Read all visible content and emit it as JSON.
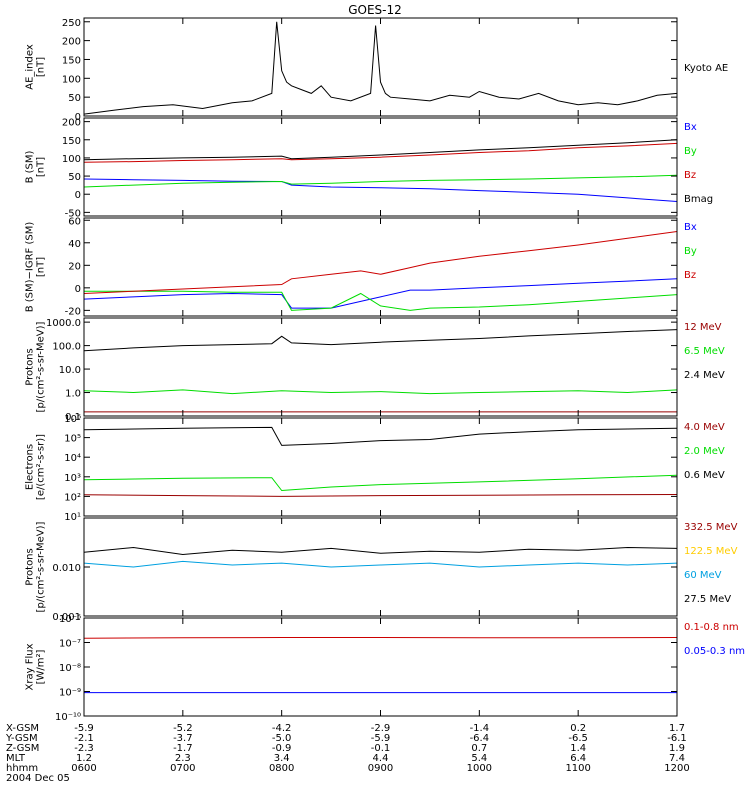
{
  "title": "GOES-12",
  "colors": {
    "black": "#000000",
    "red": "#cc0000",
    "green": "#00dd00",
    "blue": "#0000ff",
    "darkred": "#990000",
    "yellow": "#ffcc00",
    "cyan": "#00a0e0"
  },
  "chart_data": [
    {
      "id": "ae",
      "type": "line",
      "ylabel": [
        "AE_index",
        "[nT]"
      ],
      "scale": "linear",
      "ylim": [
        0,
        260
      ],
      "yticks": [
        0,
        50,
        100,
        150,
        200,
        250
      ],
      "ytick_labels": [
        "0",
        "50",
        "100",
        "150",
        "200",
        "250"
      ],
      "series": [
        {
          "name": "Kyoto AE",
          "color": "black",
          "x": [
            6.0,
            6.3,
            6.6,
            6.9,
            7.2,
            7.5,
            7.7,
            7.9,
            7.95,
            8.0,
            8.05,
            8.1,
            8.2,
            8.3,
            8.4,
            8.5,
            8.7,
            8.9,
            8.95,
            9.0,
            9.05,
            9.1,
            9.3,
            9.5,
            9.7,
            9.9,
            10.0,
            10.2,
            10.4,
            10.6,
            10.8,
            11.0,
            11.2,
            11.4,
            11.6,
            11.8,
            12.0
          ],
          "y": [
            5,
            15,
            25,
            30,
            20,
            35,
            40,
            60,
            250,
            120,
            90,
            80,
            70,
            60,
            80,
            50,
            40,
            60,
            240,
            90,
            60,
            50,
            45,
            40,
            55,
            50,
            65,
            50,
            45,
            60,
            40,
            30,
            35,
            30,
            40,
            55,
            60
          ]
        }
      ],
      "legend": [
        {
          "text": "Kyoto AE",
          "color": "black"
        }
      ]
    },
    {
      "id": "bsm",
      "type": "line",
      "ylabel": [
        "B (SM)",
        "[nT]"
      ],
      "scale": "linear",
      "ylim": [
        -60,
        210
      ],
      "yticks": [
        -50,
        0,
        50,
        100,
        150,
        200
      ],
      "ytick_labels": [
        "-50",
        "0",
        "50",
        "100",
        "150",
        "200"
      ],
      "series": [
        {
          "name": "Bx",
          "color": "blue",
          "x": [
            6.0,
            6.5,
            7.0,
            7.5,
            8.0,
            8.1,
            8.5,
            9.0,
            9.5,
            10.0,
            10.5,
            11.0,
            11.5,
            12.0
          ],
          "y": [
            42,
            40,
            38,
            36,
            35,
            25,
            20,
            18,
            15,
            10,
            5,
            0,
            -10,
            -20
          ]
        },
        {
          "name": "By",
          "color": "green",
          "x": [
            6.0,
            6.5,
            7.0,
            7.5,
            8.0,
            8.1,
            8.5,
            9.0,
            9.5,
            10.0,
            10.5,
            11.0,
            11.5,
            12.0
          ],
          "y": [
            20,
            25,
            30,
            33,
            35,
            28,
            30,
            35,
            38,
            40,
            42,
            45,
            48,
            52
          ]
        },
        {
          "name": "Bz",
          "color": "red",
          "x": [
            6.0,
            6.5,
            7.0,
            7.5,
            8.0,
            8.1,
            8.5,
            9.0,
            9.5,
            10.0,
            10.5,
            11.0,
            11.5,
            12.0
          ],
          "y": [
            88,
            90,
            93,
            95,
            98,
            95,
            98,
            102,
            108,
            115,
            120,
            128,
            133,
            140
          ]
        },
        {
          "name": "Bmag",
          "color": "black",
          "x": [
            6.0,
            6.5,
            7.0,
            7.5,
            8.0,
            8.1,
            8.5,
            9.0,
            9.5,
            10.0,
            10.5,
            11.0,
            11.5,
            12.0
          ],
          "y": [
            95,
            98,
            100,
            102,
            105,
            98,
            102,
            108,
            115,
            122,
            128,
            135,
            142,
            150
          ]
        }
      ],
      "legend": [
        {
          "text": "Bx",
          "color": "blue"
        },
        {
          "text": "By",
          "color": "green"
        },
        {
          "text": "Bz",
          "color": "red"
        },
        {
          "text": "Bmag",
          "color": "black"
        }
      ]
    },
    {
      "id": "bigrf",
      "type": "line",
      "ylabel": [
        "B (SM)−IGRF (SM)",
        "[nT]"
      ],
      "scale": "linear",
      "ylim": [
        -25,
        62
      ],
      "yticks": [
        -20,
        0,
        20,
        40,
        60
      ],
      "ytick_labels": [
        "-20",
        "0",
        "20",
        "40",
        "60"
      ],
      "series": [
        {
          "name": "Bx",
          "color": "blue",
          "x": [
            6.0,
            6.5,
            7.0,
            7.5,
            8.0,
            8.1,
            8.5,
            8.8,
            9.0,
            9.3,
            9.5,
            10.0,
            10.5,
            11.0,
            11.5,
            12.0
          ],
          "y": [
            -10,
            -8,
            -6,
            -5,
            -6,
            -18,
            -18,
            -12,
            -8,
            -2,
            -2,
            0,
            2,
            4,
            6,
            8
          ]
        },
        {
          "name": "By",
          "color": "green",
          "x": [
            6.0,
            6.5,
            7.0,
            7.5,
            8.0,
            8.1,
            8.5,
            8.8,
            9.0,
            9.3,
            9.5,
            10.0,
            10.5,
            11.0,
            11.5,
            12.0
          ],
          "y": [
            -3,
            -3,
            -3,
            -4,
            -4,
            -20,
            -18,
            -5,
            -16,
            -20,
            -18,
            -17,
            -15,
            -12,
            -9,
            -6
          ]
        },
        {
          "name": "Bz",
          "color": "red",
          "x": [
            6.0,
            6.5,
            7.0,
            7.5,
            8.0,
            8.1,
            8.5,
            8.8,
            9.0,
            9.3,
            9.5,
            10.0,
            10.5,
            11.0,
            11.5,
            12.0
          ],
          "y": [
            -5,
            -3,
            -1,
            1,
            3,
            8,
            12,
            15,
            12,
            18,
            22,
            28,
            33,
            38,
            44,
            50
          ]
        }
      ],
      "legend": [
        {
          "text": "Bx",
          "color": "blue"
        },
        {
          "text": "By",
          "color": "green"
        },
        {
          "text": "Bz",
          "color": "red"
        }
      ]
    },
    {
      "id": "protons1",
      "type": "line",
      "ylabel": [
        "Protons",
        "[p/(cm²-s-sr-MeV)]"
      ],
      "scale": "log",
      "ylim": [
        0.1,
        1500
      ],
      "yticks": [
        0.1,
        1,
        10,
        100,
        1000
      ],
      "ytick_labels": [
        "0.1",
        "1.0",
        "10.0",
        "100.0",
        "1000.0"
      ],
      "series": [
        {
          "name": "12 MeV",
          "color": "darkred",
          "x": [
            6.0,
            7.0,
            8.0,
            9.0,
            10.0,
            11.0,
            12.0
          ],
          "y": [
            0.15,
            0.15,
            0.15,
            0.15,
            0.15,
            0.15,
            0.15
          ]
        },
        {
          "name": "6.5 MeV",
          "color": "green",
          "x": [
            6.0,
            6.5,
            7.0,
            7.5,
            8.0,
            8.5,
            9.0,
            9.5,
            10.0,
            10.5,
            11.0,
            11.5,
            12.0
          ],
          "y": [
            1.2,
            1.0,
            1.3,
            0.9,
            1.2,
            1.0,
            1.1,
            0.9,
            1.0,
            1.1,
            1.2,
            1.0,
            1.3
          ]
        },
        {
          "name": "2.4 MeV",
          "color": "black",
          "x": [
            6.0,
            6.5,
            7.0,
            7.5,
            7.9,
            8.0,
            8.1,
            8.5,
            9.0,
            9.5,
            10.0,
            10.5,
            11.0,
            11.5,
            12.0
          ],
          "y": [
            60,
            80,
            100,
            110,
            120,
            250,
            130,
            110,
            140,
            170,
            200,
            260,
            320,
            400,
            480
          ]
        }
      ],
      "legend": [
        {
          "text": "12 MeV",
          "color": "darkred"
        },
        {
          "text": "6.5 MeV",
          "color": "green"
        },
        {
          "text": "2.4 MeV",
          "color": "black"
        }
      ]
    },
    {
      "id": "electrons",
      "type": "line",
      "ylabel": [
        "Electrons",
        "[e/(cm²-s-sr)]"
      ],
      "scale": "log",
      "ylim": [
        10,
        1000000
      ],
      "yticks": [
        10,
        100,
        1000,
        10000,
        100000,
        1000000
      ],
      "ytick_labels": [
        "10¹",
        "10²",
        "10³",
        "10⁴",
        "10⁵",
        "10⁶"
      ],
      "series": [
        {
          "name": "4.0 MeV",
          "color": "darkred",
          "x": [
            6.0,
            7.0,
            8.0,
            9.0,
            10.0,
            11.0,
            12.0
          ],
          "y": [
            120,
            110,
            100,
            110,
            115,
            120,
            125
          ]
        },
        {
          "name": "2.0 MeV",
          "color": "green",
          "x": [
            6.0,
            7.0,
            7.9,
            8.0,
            8.5,
            9.0,
            10.0,
            11.0,
            12.0
          ],
          "y": [
            700,
            850,
            900,
            200,
            300,
            400,
            550,
            800,
            1200
          ]
        },
        {
          "name": "0.6 MeV",
          "color": "black",
          "x": [
            6.0,
            7.0,
            7.9,
            8.0,
            8.5,
            9.0,
            9.5,
            10.0,
            10.5,
            11.0,
            12.0
          ],
          "y": [
            250000,
            300000,
            330000,
            40000,
            50000,
            70000,
            80000,
            150000,
            200000,
            250000,
            300000
          ]
        }
      ],
      "legend": [
        {
          "text": "4.0 MeV",
          "color": "darkred"
        },
        {
          "text": "2.0 MeV",
          "color": "green"
        },
        {
          "text": "0.6 MeV",
          "color": "black"
        }
      ]
    },
    {
      "id": "protons2",
      "type": "line",
      "ylabel": [
        "Protons",
        "[p/(cm²-s-sr-MeV)]"
      ],
      "scale": "log",
      "ylim": [
        0.001,
        0.1
      ],
      "yticks": [
        0.001,
        0.01
      ],
      "ytick_labels": [
        "0.001",
        "0.010"
      ],
      "series": [
        {
          "name": "27.5 MeV",
          "color": "black",
          "x": [
            6.0,
            6.5,
            7.0,
            7.5,
            8.0,
            8.5,
            9.0,
            9.5,
            10.0,
            10.5,
            11.0,
            11.5,
            12.0
          ],
          "y": [
            0.02,
            0.025,
            0.018,
            0.022,
            0.02,
            0.024,
            0.019,
            0.021,
            0.02,
            0.023,
            0.022,
            0.025,
            0.024
          ]
        },
        {
          "name": "60 MeV",
          "color": "cyan",
          "x": [
            6.0,
            6.5,
            7.0,
            7.5,
            8.0,
            8.5,
            9.0,
            9.5,
            10.0,
            10.5,
            11.0,
            11.5,
            12.0
          ],
          "y": [
            0.012,
            0.01,
            0.013,
            0.011,
            0.012,
            0.01,
            0.011,
            0.012,
            0.01,
            0.011,
            0.012,
            0.011,
            0.012
          ]
        }
      ],
      "legend": [
        {
          "text": "332.5 MeV",
          "color": "darkred"
        },
        {
          "text": "122.5 MeV",
          "color": "yellow"
        },
        {
          "text": "60 MeV",
          "color": "cyan"
        },
        {
          "text": "27.5 MeV",
          "color": "black"
        }
      ]
    },
    {
      "id": "xray",
      "type": "line",
      "ylabel": [
        "Xray Flux",
        "[W/m²]"
      ],
      "scale": "log",
      "ylim": [
        1e-10,
        1e-06
      ],
      "yticks": [
        1e-10,
        1e-09,
        1e-08,
        1e-07,
        1e-06
      ],
      "ytick_labels": [
        "10⁻¹⁰",
        "10⁻⁹",
        "10⁻⁸",
        "10⁻⁷",
        "10⁻⁶"
      ],
      "series": [
        {
          "name": "0.1-0.8 nm",
          "color": "red",
          "x": [
            6.0,
            7.0,
            8.0,
            9.0,
            10.0,
            11.0,
            12.0
          ],
          "y": [
            1.5e-07,
            1.55e-07,
            1.6e-07,
            1.6e-07,
            1.55e-07,
            1.55e-07,
            1.6e-07
          ]
        },
        {
          "name": "0.05-0.3 nm",
          "color": "blue",
          "x": [
            6.0,
            7.0,
            8.0,
            9.0,
            10.0,
            11.0,
            12.0
          ],
          "y": [
            9e-10,
            9e-10,
            9e-10,
            9e-10,
            9e-10,
            9e-10,
            9e-10
          ]
        }
      ],
      "legend": [
        {
          "text": "0.1-0.8 nm",
          "color": "red"
        },
        {
          "text": "0.05-0.3 nm",
          "color": "blue"
        }
      ]
    }
  ],
  "xaxis": {
    "xlim": [
      6.0,
      12.0
    ],
    "tick_x": [
      6,
      7,
      8,
      9,
      10,
      11,
      12
    ],
    "rows": [
      {
        "label": "X-GSM",
        "values": [
          "-5.9",
          "-5.2",
          "-4.2",
          "-2.9",
          "-1.4",
          "0.2",
          "1.7"
        ]
      },
      {
        "label": "Y-GSM",
        "values": [
          "-2.1",
          "-3.7",
          "-5.0",
          "-5.9",
          "-6.4",
          "-6.5",
          "-6.1"
        ]
      },
      {
        "label": "Z-GSM",
        "values": [
          "-2.3",
          "-1.7",
          "-0.9",
          "-0.1",
          "0.7",
          "1.4",
          "1.9"
        ]
      },
      {
        "label": "MLT",
        "values": [
          "1.2",
          "2.3",
          "3.4",
          "4.4",
          "5.4",
          "6.4",
          "7.4"
        ]
      },
      {
        "label": "hhmm",
        "values": [
          "0600",
          "0700",
          "0800",
          "0900",
          "1000",
          "1100",
          "1200"
        ]
      }
    ],
    "date": "2004 Dec 05"
  }
}
